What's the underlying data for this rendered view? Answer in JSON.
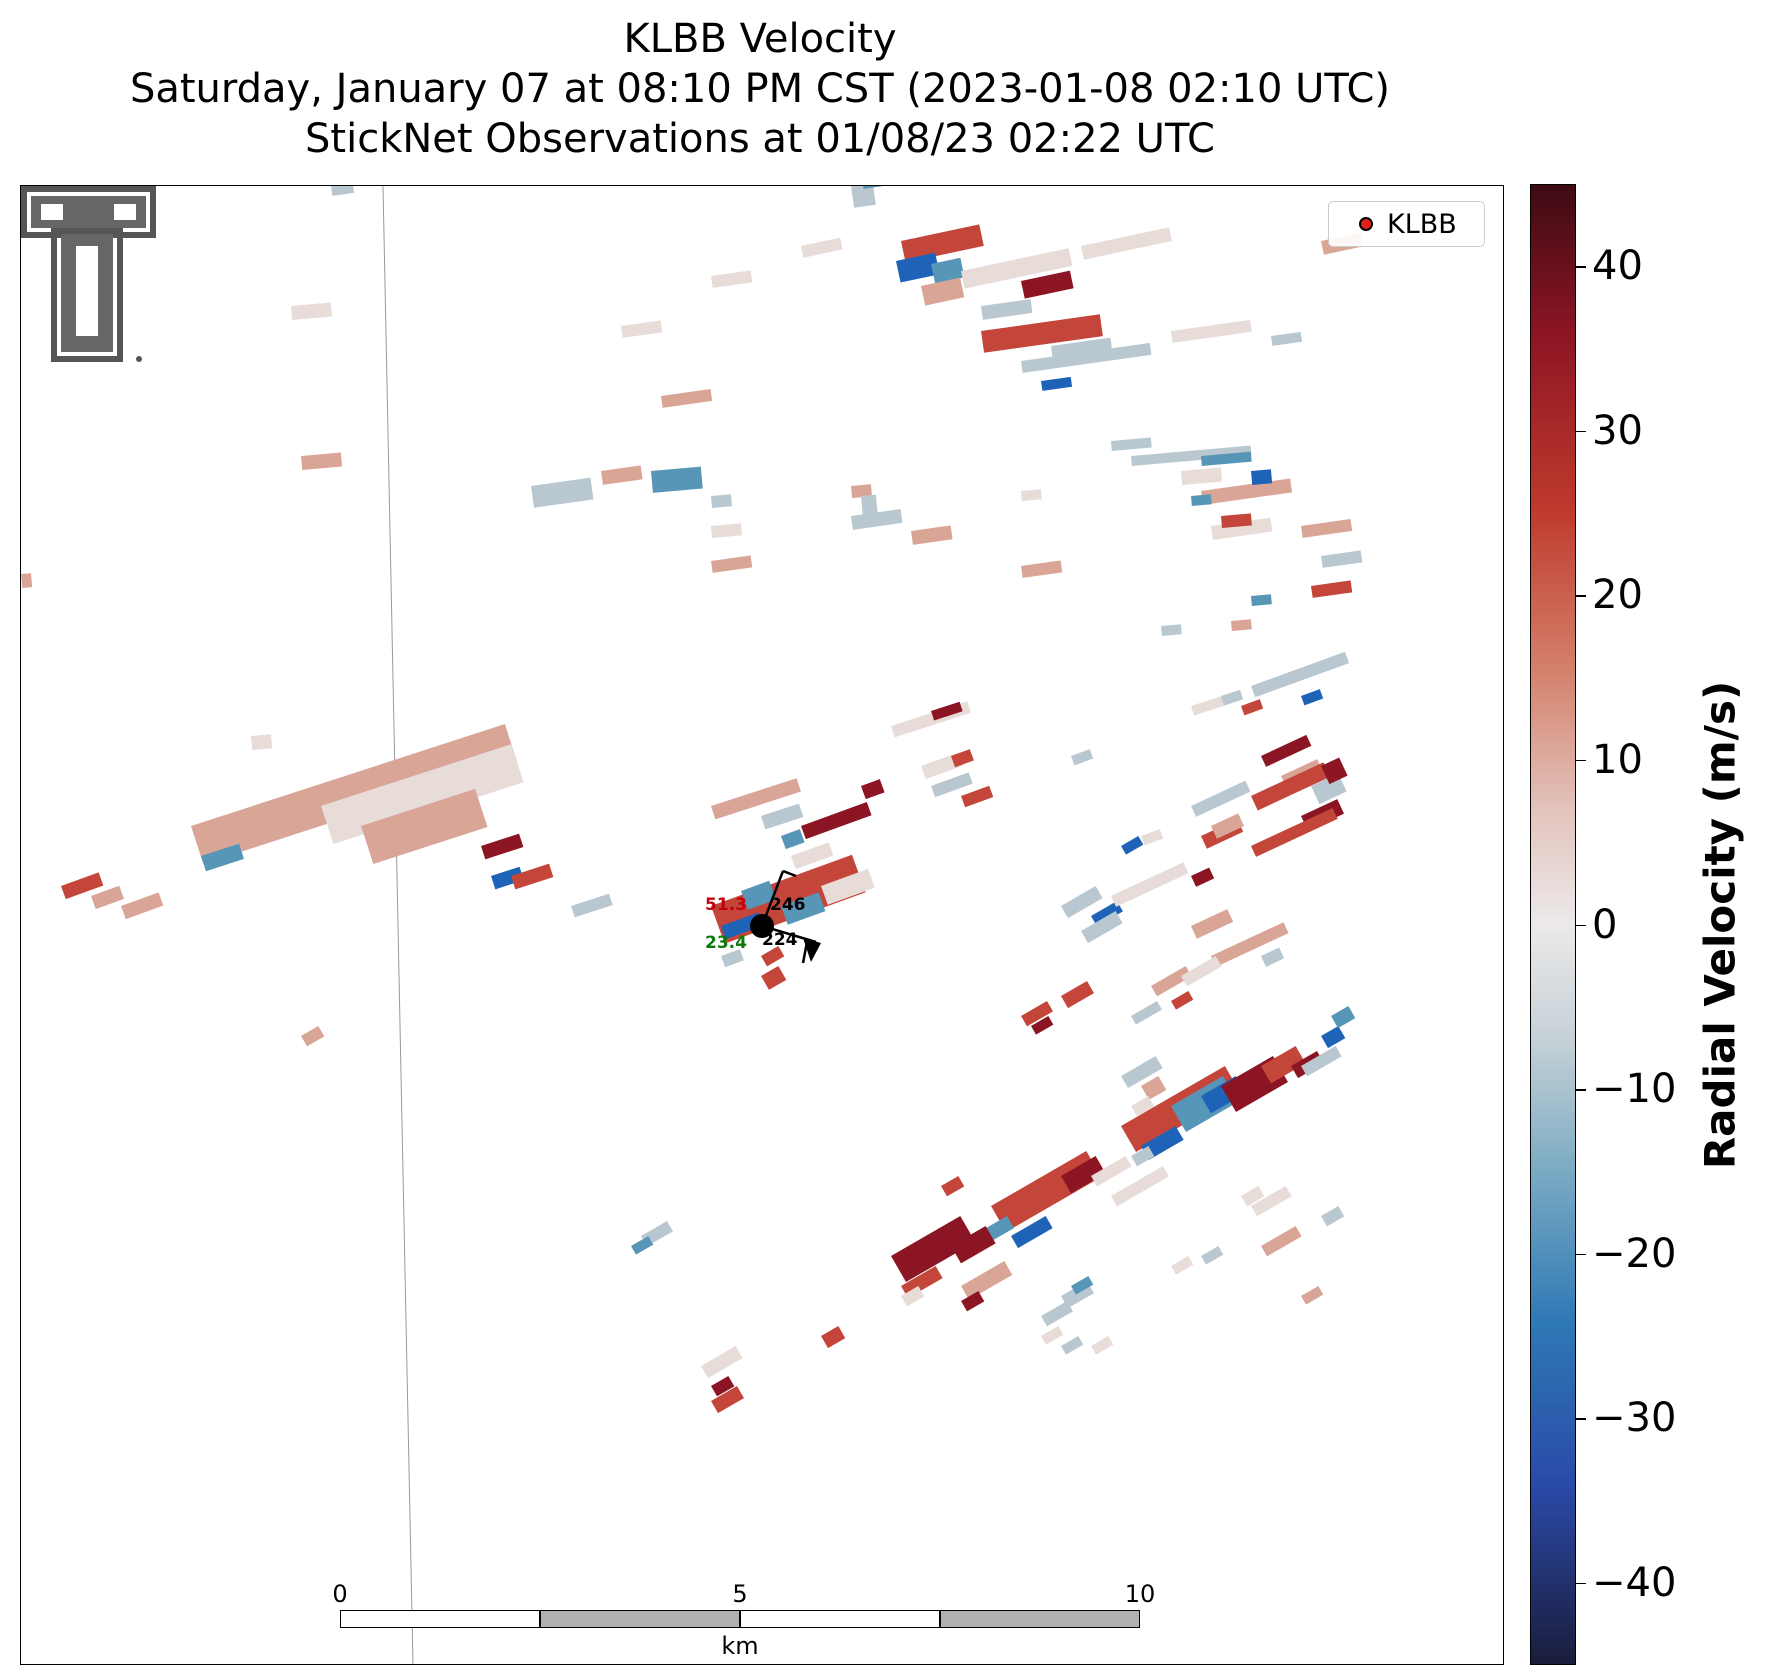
{
  "title": {
    "line1": "KLBB Velocity",
    "line2": "Saturday, January 07 at 08:10 PM CST (2023-01-08 02:10 UTC)",
    "line3": "StickNet Observations at 01/08/23 02:22 UTC"
  },
  "legend": {
    "label": "KLBB",
    "marker_color": "#e0201b"
  },
  "logo": {
    "name": "Texas Tech Double T logo"
  },
  "scalebar": {
    "ticks": [
      "0",
      "5",
      "10"
    ],
    "unit": "km"
  },
  "colorbar": {
    "label": "Radial Velocity (m/s)",
    "ticks": [
      "40",
      "30",
      "20",
      "10",
      "0",
      "−10",
      "−20",
      "−30",
      "−40"
    ],
    "range": [
      -45,
      45
    ]
  },
  "station": {
    "temperature": "51.3",
    "dewpoint": "23.4",
    "value_top": "246",
    "value_bottom": "224",
    "temperature_color": "#c0000b",
    "dewpoint_color": "#0a7a0a"
  },
  "colors": {
    "strong_positive": "#8c1523",
    "positive": "#c4463a",
    "weak_positive": "#d9a597",
    "near_zero": "#e8dcd9",
    "weak_negative": "#b9c8d0",
    "negative": "#5796b6",
    "strong_negative": "#1e63b8"
  }
}
